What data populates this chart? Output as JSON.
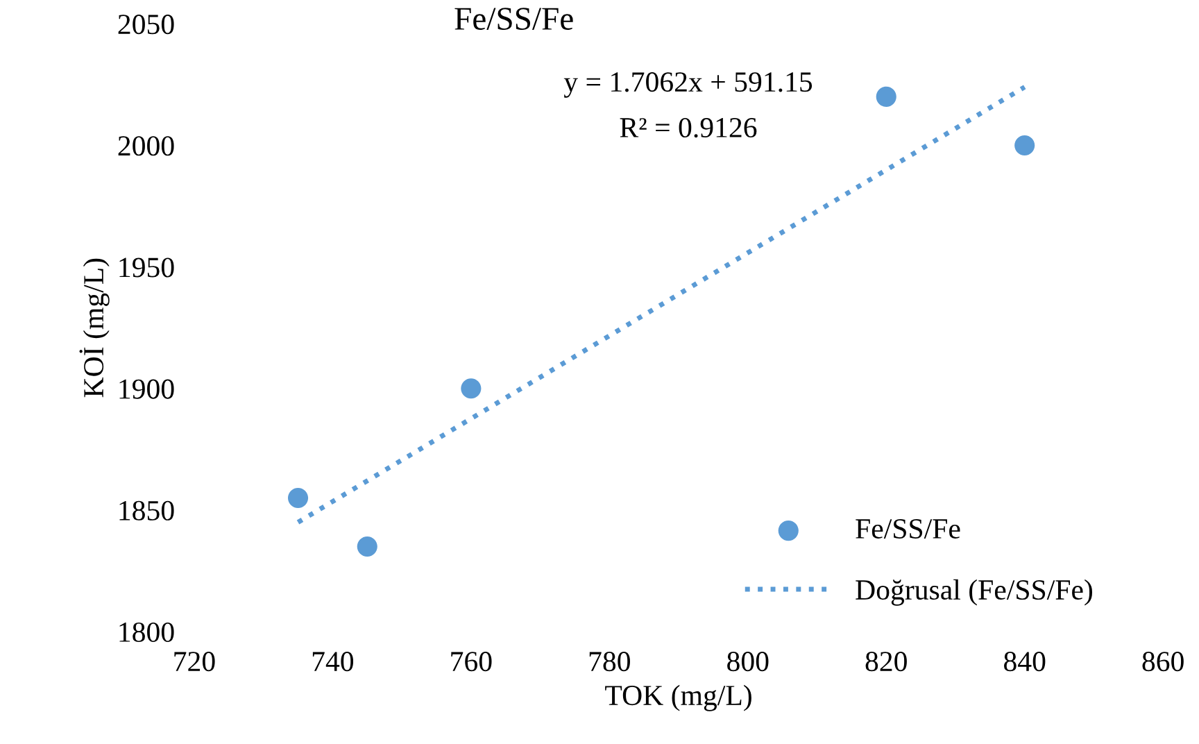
{
  "chart_data": {
    "type": "scatter",
    "title": "Fe/SS/Fe",
    "xlabel": "TOK (mg/L)",
    "ylabel": "KOİ (mg/L)",
    "series": [
      {
        "name": "Fe/SS/Fe",
        "color": "#5b9bd5",
        "marker": "circle",
        "x": [
          735,
          745,
          760,
          820,
          840
        ],
        "values": [
          1855,
          1835,
          1900,
          2020,
          2000
        ]
      },
      {
        "name": "Doğrusal (Fe/SS/Fe)",
        "type": "line",
        "color": "#5b9bd5",
        "marker": "none",
        "line_style": "dotted",
        "x": [
          735,
          840
        ],
        "values": [
          1845,
          2024
        ]
      }
    ],
    "annotations": [
      "y = 1.7062x + 591.15",
      "R² = 0.9126"
    ],
    "xlim": [
      720,
      860
    ],
    "xticks": [
      720,
      740,
      760,
      780,
      800,
      820,
      840,
      860
    ],
    "ylim": [
      1800,
      2050
    ],
    "yticks": [
      1800,
      1850,
      1900,
      1950,
      2000,
      2050
    ],
    "grid": false,
    "legend": "bottom right"
  }
}
